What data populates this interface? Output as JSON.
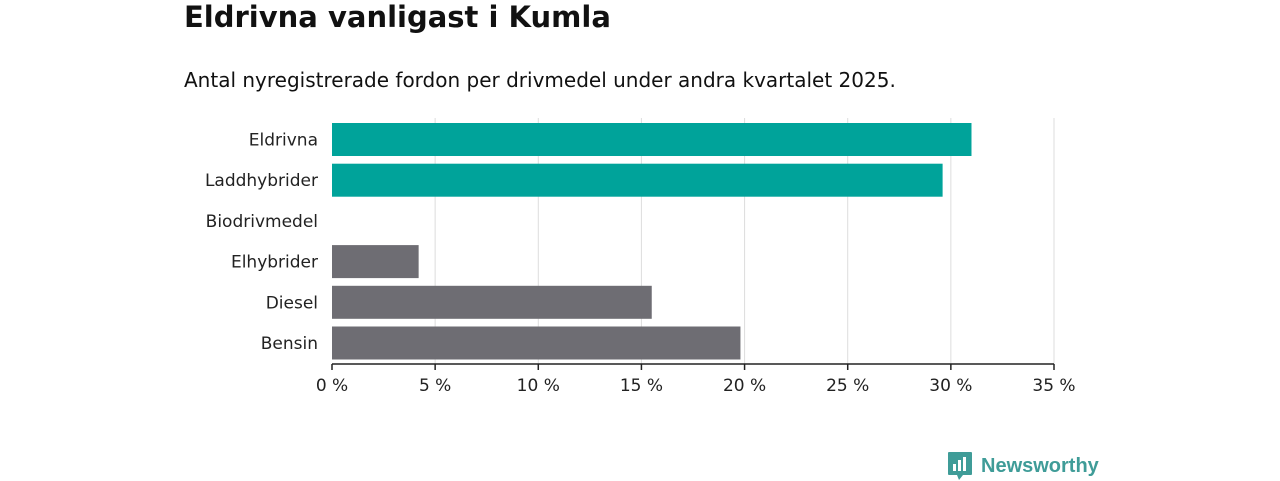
{
  "title": "Eldrivna vanligast i Kumla",
  "subtitle": "Antal nyregistrerade fordon per drivmedel under andra kvartalet 2025.",
  "brand": {
    "name": "Newsworthy",
    "icon": "newsworthy-logo-icon",
    "color": "#3f9c98"
  },
  "chart_data": {
    "type": "bar",
    "orientation": "horizontal",
    "categories": [
      "Eldrivna",
      "Laddhybrider",
      "Biodrivmedel",
      "Elhybrider",
      "Diesel",
      "Bensin"
    ],
    "values": [
      31.0,
      29.6,
      0,
      4.2,
      15.5,
      19.8
    ],
    "highlighted": [
      true,
      true,
      false,
      false,
      false,
      false
    ],
    "colors": {
      "highlight": "#00a39a",
      "default": "#6e6d73",
      "grid": "#dddddd",
      "axis": "#222222"
    },
    "xlim": [
      0,
      35
    ],
    "xticks": [
      0,
      5,
      10,
      15,
      20,
      25,
      30,
      35
    ],
    "xtick_labels": [
      "0 %",
      "5 %",
      "10 %",
      "15 %",
      "20 %",
      "25 %",
      "30 %",
      "35 %"
    ],
    "grid": true
  }
}
